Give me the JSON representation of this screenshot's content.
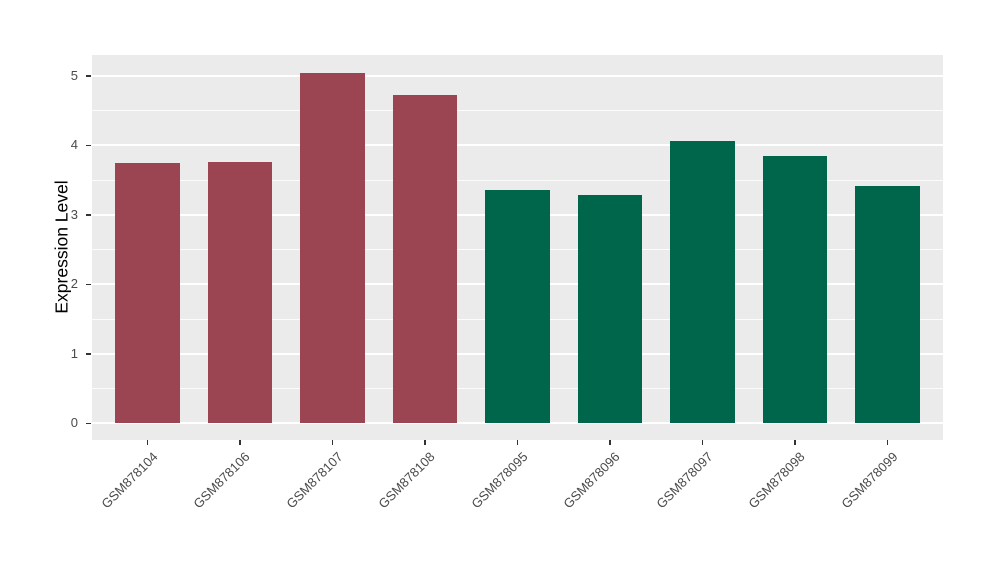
{
  "chart_data": {
    "type": "bar",
    "title": "",
    "xlabel": "",
    "ylabel": "Expression Level",
    "categories": [
      "GSM878104",
      "GSM878106",
      "GSM878107",
      "GSM878108",
      "GSM878095",
      "GSM878096",
      "GSM878097",
      "GSM878098",
      "GSM878099"
    ],
    "values": [
      3.74,
      3.76,
      5.04,
      4.72,
      3.36,
      3.28,
      4.06,
      3.84,
      3.42
    ],
    "bar_colors": [
      "#9A4551",
      "#9A4551",
      "#9A4551",
      "#9A4551",
      "#00664B",
      "#00664B",
      "#00664B",
      "#00664B",
      "#00664B"
    ],
    "group_colors": {
      "red_group": "#9A4551",
      "green_group": "#00664B"
    },
    "ylim": [
      -0.24,
      5.3
    ],
    "yticks": [
      0,
      1,
      2,
      3,
      4,
      5
    ],
    "grid": true,
    "legend": "none",
    "panel_bg": "#EBEBEB",
    "grid_color": "#FFFFFF"
  }
}
